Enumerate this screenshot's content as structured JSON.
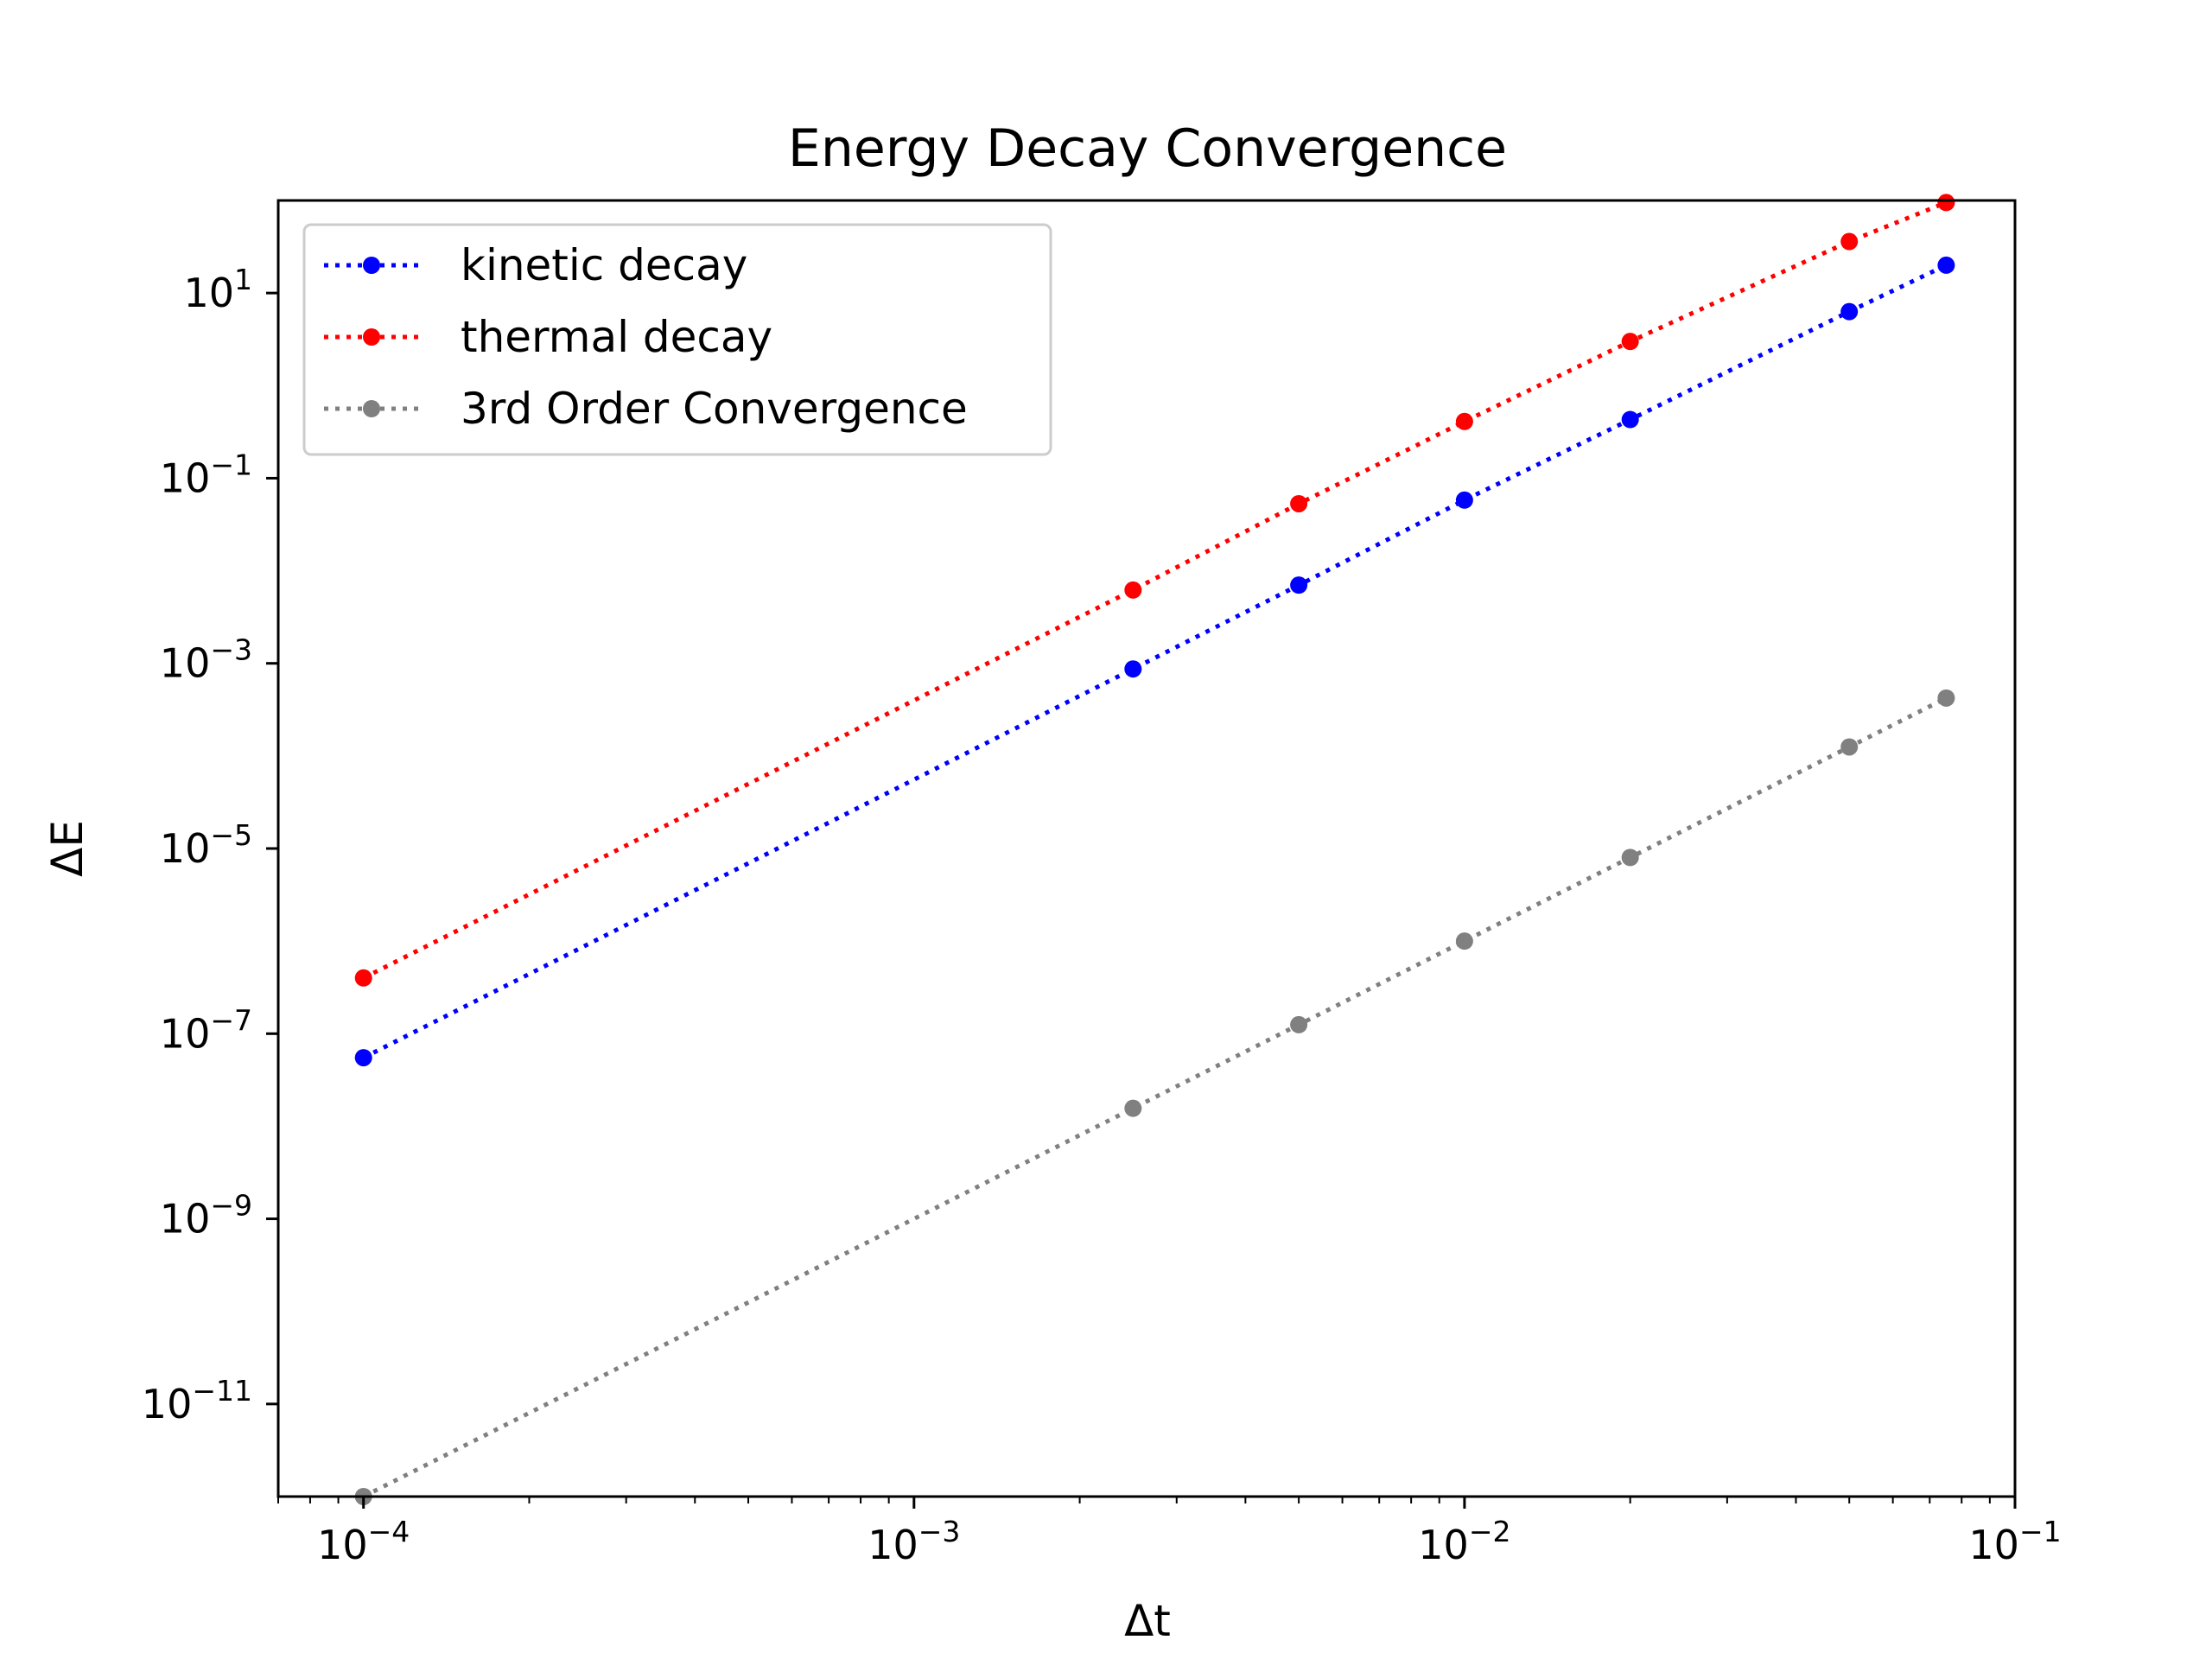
{
  "chart_data": {
    "type": "line",
    "title": "Energy Decay Convergence",
    "xlabel": "Δt",
    "ylabel": "ΔE",
    "xscale": "log",
    "yscale": "log",
    "xlim": [
      7e-05,
      0.1
    ],
    "ylim": [
      1e-12,
      100
    ],
    "x_ticks": [
      {
        "base": "10",
        "exp": "−4",
        "value": 0.0001
      },
      {
        "base": "10",
        "exp": "−3",
        "value": 0.001
      },
      {
        "base": "10",
        "exp": "−2",
        "value": 0.01
      },
      {
        "base": "10",
        "exp": "−1",
        "value": 0.1
      }
    ],
    "y_ticks": [
      {
        "base": "10",
        "exp": "1",
        "value": 10
      },
      {
        "base": "10",
        "exp": "−1",
        "value": 0.1
      },
      {
        "base": "10",
        "exp": "−3",
        "value": 0.001
      },
      {
        "base": "10",
        "exp": "−5",
        "value": 1e-05
      },
      {
        "base": "10",
        "exp": "−7",
        "value": 1e-07
      },
      {
        "base": "10",
        "exp": "−9",
        "value": 1e-09
      },
      {
        "base": "10",
        "exp": "−11",
        "value": 1e-11
      }
    ],
    "grid": false,
    "legend_position": "top-left",
    "series": [
      {
        "name": "kinetic decay",
        "color": "#0000ff",
        "linestyle": "dotted",
        "marker": "circle",
        "x": [
          0.0001,
          0.0025,
          0.005,
          0.01,
          0.02,
          0.05,
          0.075
        ],
        "y": [
          5.5e-08,
          0.00087,
          0.007,
          0.058,
          0.43,
          6.3,
          20
        ]
      },
      {
        "name": "thermal decay",
        "color": "#ff0000",
        "linestyle": "dotted",
        "marker": "circle",
        "x": [
          0.0001,
          0.0025,
          0.005,
          0.01,
          0.02,
          0.05,
          0.075
        ],
        "y": [
          4e-07,
          0.0062,
          0.053,
          0.41,
          3,
          36,
          95
        ]
      },
      {
        "name": "3rd Order Convergence",
        "color": "#808080",
        "linestyle": "dotted",
        "marker": "circle",
        "x": [
          0.0001,
          0.0025,
          0.005,
          0.01,
          0.02,
          0.05,
          0.075
        ],
        "y": [
          1e-12,
          1.5625e-08,
          1.25e-07,
          1e-06,
          8e-06,
          0.000125,
          0.000421875
        ]
      }
    ]
  }
}
